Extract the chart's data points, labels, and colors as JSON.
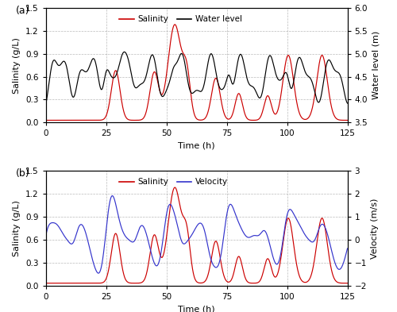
{
  "panel_a_label": "(a)",
  "panel_b_label": "(b)",
  "xlabel": "Time (h)",
  "ylabel_sal": "Salinity (g/L)",
  "ylabel_wl": "Water level (m)",
  "ylabel_vel": "Velocity (m/s)",
  "legend_sal": "Salinity",
  "legend_wl": "Water level",
  "legend_vel": "Velocity",
  "sal_color": "#cc0000",
  "wl_color": "#000000",
  "vel_color": "#3333cc",
  "xlim": [
    0,
    125
  ],
  "ylim_sal": [
    0.0,
    1.5
  ],
  "ylim_wl": [
    3.5,
    6.0
  ],
  "ylim_vel": [
    -2.0,
    3.0
  ],
  "xticks": [
    0,
    25,
    50,
    75,
    100,
    125
  ],
  "yticks_sal": [
    0.0,
    0.3,
    0.6,
    0.9,
    1.2,
    1.5
  ],
  "yticks_wl": [
    3.5,
    4.0,
    4.5,
    5.0,
    5.5,
    6.0
  ],
  "yticks_vel": [
    -2.0,
    -1.0,
    0.0,
    1.0,
    2.0,
    3.0
  ],
  "figsize": [
    5.0,
    3.93
  ],
  "dpi": 100
}
